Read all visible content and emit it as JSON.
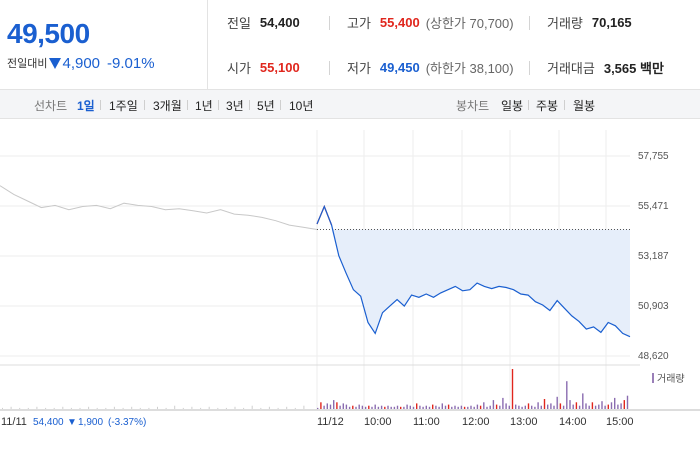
{
  "summary": {
    "price": "49,500",
    "change_label": "전일대비",
    "change_direction_icon": "down-triangle-icon",
    "change_value": "4,900",
    "change_percent": "-9.01%",
    "prev_close": {
      "label": "전일",
      "value": "54,400"
    },
    "high": {
      "label": "고가",
      "value": "55,400",
      "limit": "(상한가 70,700)"
    },
    "volume": {
      "label": "거래량",
      "value": "70,165"
    },
    "open": {
      "label": "시가",
      "value": "55,100"
    },
    "low": {
      "label": "저가",
      "value": "49,450",
      "limit": "(하한가 38,100)"
    },
    "amount": {
      "label": "거래대금",
      "value": "3,565 백만"
    }
  },
  "periods": {
    "line_label": "선차트",
    "line_items": [
      "1일",
      "1주일",
      "3개월",
      "1년",
      "3년",
      "5년",
      "10년"
    ],
    "active": "1일",
    "candle_label": "봉차트",
    "candle_items": [
      "일봉",
      "주봉",
      "월봉"
    ]
  },
  "colors": {
    "up": "#e0261d",
    "down": "#1a5fd0",
    "prev_day_line": "#c8c8c8",
    "fill": "#e6eefa"
  },
  "chart_data": {
    "type": "line",
    "y_ticks": [
      "57,755",
      "55,471",
      "53,187",
      "50,903",
      "48,620"
    ],
    "ylim": [
      48620,
      57755
    ],
    "x_ticks": [
      "11/12",
      "10:00",
      "11:00",
      "12:00",
      "13:00",
      "14:00",
      "15:00"
    ],
    "prev_day": {
      "label": "11/11",
      "close": "54,400",
      "change_value": "1,900",
      "change_percent": "(-3.37%)"
    },
    "volume_legend": "거래량",
    "series": [
      {
        "values_prev_day": [
          56400,
          56000,
          55700,
          55400,
          55500,
          55300,
          55450,
          55500,
          55350,
          55600,
          55500,
          55450,
          55300,
          55350,
          55250,
          55150,
          55300,
          55100,
          55050,
          54950,
          54800,
          54600,
          54500,
          54400
        ],
        "values_today": [
          54650,
          55450,
          54600,
          53200,
          52400,
          51650,
          51350,
          50150,
          49650,
          50600,
          50900,
          51200,
          50900,
          51400,
          51300,
          51450,
          51300,
          51500,
          51650,
          51800,
          51600,
          51650,
          51950,
          51800,
          51700,
          51800,
          51750,
          51650,
          51450,
          51400,
          51100,
          50950,
          50700,
          51150,
          50800,
          50450,
          50200,
          49850,
          49950,
          49700,
          50150,
          50000,
          49650,
          49500
        ]
      }
    ],
    "volume_today": [
      1,
      6,
      3,
      5,
      4,
      8,
      6,
      3,
      5,
      4,
      2,
      3,
      2,
      4,
      3,
      2,
      3,
      2,
      4,
      2,
      3,
      2,
      3,
      2,
      2,
      3,
      2,
      2,
      4,
      3,
      2,
      5,
      3,
      2,
      3,
      2,
      4,
      3,
      2,
      5,
      3,
      4,
      2,
      3,
      2,
      3,
      2,
      2,
      3,
      2,
      4,
      3,
      6,
      2,
      3,
      8,
      4,
      3,
      10,
      5,
      3,
      36,
      4,
      3,
      2,
      3,
      5,
      3,
      2,
      6,
      3,
      9,
      4,
      5,
      3,
      11,
      5,
      3,
      25,
      8,
      4,
      6,
      3,
      14,
      5,
      3,
      6,
      3,
      4,
      7,
      3,
      4,
      6,
      10,
      4,
      5,
      8,
      12
    ],
    "volume_prev_day": [
      1,
      2,
      1,
      1,
      2,
      1,
      1,
      2,
      1,
      1,
      2,
      1,
      1,
      2,
      1,
      2,
      1,
      1,
      2,
      1,
      3,
      1,
      2,
      1,
      2,
      1,
      1,
      2,
      1,
      3,
      1,
      2,
      1,
      2,
      1,
      3
    ]
  }
}
